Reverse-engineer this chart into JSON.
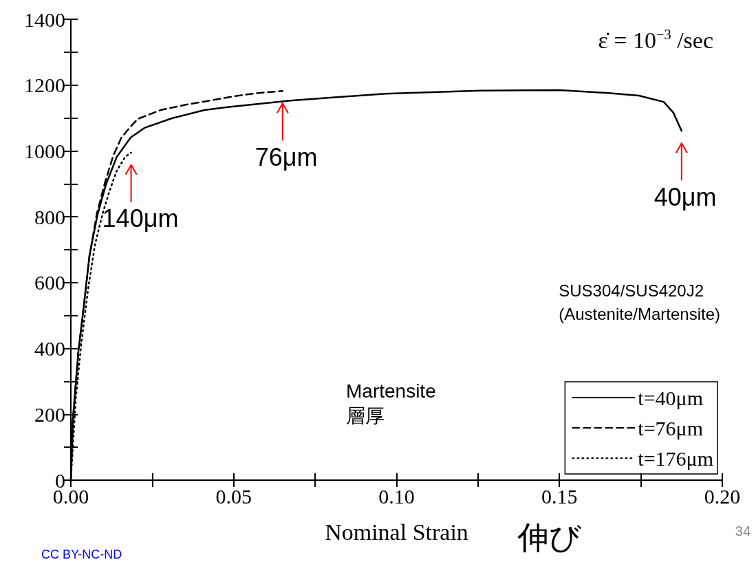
{
  "chart_data": {
    "type": "line",
    "xlabel": "Nominal Strain",
    "xlim": [
      0,
      0.2
    ],
    "ylim": [
      0,
      1400
    ],
    "xticks": [
      {
        "value": 0,
        "label": "0.00"
      },
      {
        "value": 0.025,
        "label": null
      },
      {
        "value": 0.05,
        "label": "0.05"
      },
      {
        "value": 0.075,
        "label": null
      },
      {
        "value": 0.1,
        "label": "0.10"
      },
      {
        "value": 0.125,
        "label": null
      },
      {
        "value": 0.15,
        "label": "0.15"
      },
      {
        "value": 0.175,
        "label": null
      },
      {
        "value": 0.2,
        "label": "0.20"
      }
    ],
    "yticks": [
      0,
      {
        "value": 100,
        "label": null
      },
      200,
      {
        "value": 300,
        "label": null
      },
      400,
      {
        "value": 500,
        "label": null
      },
      600,
      {
        "value": 700,
        "label": null
      },
      800,
      {
        "value": 900,
        "label": null
      },
      1000,
      {
        "value": 1100,
        "label": null
      },
      1200,
      {
        "value": 1300,
        "label": null
      },
      1400
    ],
    "grid": false,
    "legend": "bottom right",
    "marker": "none",
    "series": [
      {
        "name": "t=40μm",
        "color": "#000000",
        "line_style": "solid",
        "x": [
          0,
          0.0006,
          0.0023,
          0.004,
          0.0057,
          0.0082,
          0.0108,
          0.0141,
          0.0184,
          0.0226,
          0.031,
          0.041,
          0.048,
          0.0674,
          0.0965,
          0.1257,
          0.15,
          0.165,
          0.1744,
          0.182,
          0.185,
          0.1875
        ],
        "values": [
          0,
          180,
          389,
          531,
          681,
          807,
          899,
          982,
          1041,
          1070,
          1099,
          1124,
          1133,
          1153,
          1174,
          1183,
          1185,
          1176,
          1168,
          1149,
          1116,
          1061
        ]
      },
      {
        "name": "t=76μm",
        "color": "#000000",
        "line_style": "dashed",
        "x": [
          0,
          0.0006,
          0.0023,
          0.004,
          0.0057,
          0.008,
          0.0105,
          0.013,
          0.0155,
          0.018,
          0.0205,
          0.0275,
          0.035,
          0.0416,
          0.05,
          0.0575,
          0.065
        ],
        "values": [
          0,
          180,
          390,
          530,
          680,
          810,
          905,
          985,
          1040,
          1070,
          1097,
          1124,
          1140,
          1151,
          1166,
          1176,
          1182
        ]
      },
      {
        "name": "t=176μm",
        "color": "#000000",
        "line_style": "dotted",
        "x": [
          0,
          0.0015,
          0.0032,
          0.0053,
          0.0074,
          0.0099,
          0.012,
          0.0141,
          0.0167,
          0.0185
        ],
        "values": [
          0,
          247,
          414,
          581,
          715,
          815,
          882,
          940,
          982,
          995
        ]
      }
    ],
    "annotations": [
      "ε̇ = 10$^{−3}$ /sec",
      "SUS304/SUS420J2\n(Austenite/Martensite)",
      "Martensite\n層厚",
      "伸び",
      "34",
      "CC BY-NC-ND",
      {
        "text": "140μm",
        "x": 0.0185,
        "y": 995
      },
      {
        "text": "76μm",
        "x": 0.065,
        "y": 1182
      },
      {
        "text": "40μm",
        "x": 0.1875,
        "y": 1061
      }
    ]
  }
}
